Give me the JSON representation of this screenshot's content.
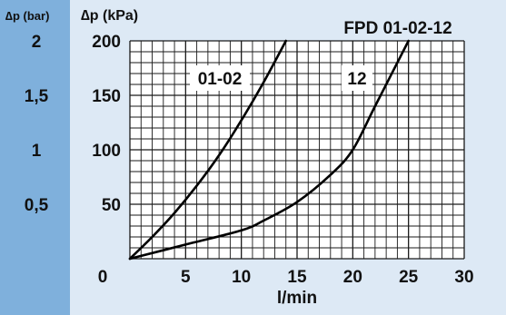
{
  "chart_data": {
    "type": "line",
    "title": "FPD 01-02-12",
    "xlabel": "l/min",
    "ylabel": "∆p (kPa)",
    "ylabel_secondary": "∆p (bar)",
    "xlim": [
      0,
      30
    ],
    "ylim": [
      0,
      200
    ],
    "x_ticks": [
      "0",
      "5",
      "10",
      "15",
      "20",
      "25",
      "30"
    ],
    "y_ticks": [
      "50",
      "100",
      "150",
      "200"
    ],
    "y_ticks_secondary": [
      "0,5",
      "1",
      "1,5",
      "2"
    ],
    "grid": true,
    "series": [
      {
        "name": "01-02",
        "x": [
          0,
          2,
          4,
          6,
          8,
          10,
          12,
          14
        ],
        "y": [
          0,
          20,
          42,
          67,
          95,
          127,
          162,
          200
        ]
      },
      {
        "name": "12",
        "x": [
          0,
          5,
          10,
          12,
          15,
          18,
          20,
          22,
          25
        ],
        "y": [
          0,
          13,
          26,
          35,
          52,
          77,
          100,
          140,
          200
        ]
      }
    ],
    "colors": {
      "page_bg": "#dde9f5",
      "left_band": "#7fb0dc",
      "plot_bg": "#ffffff",
      "grid": "#1a1a1a",
      "curve": "#000000"
    }
  }
}
